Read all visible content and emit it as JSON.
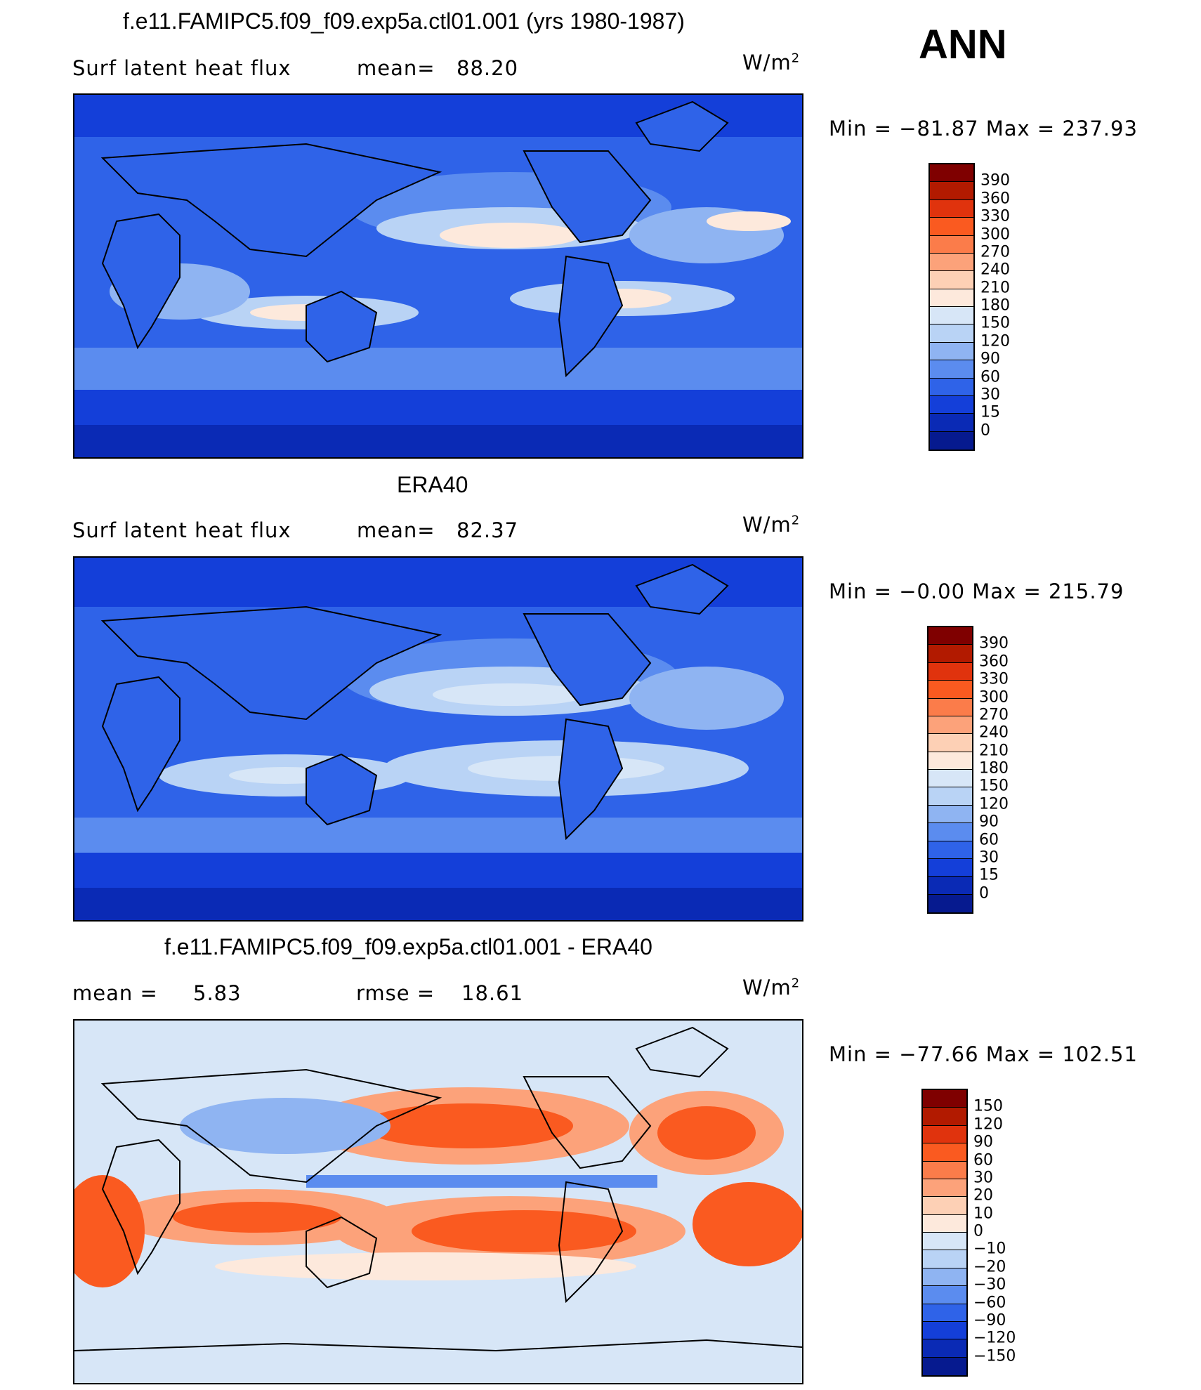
{
  "season": "ANN",
  "units_base": "W/m",
  "units_exp": "2",
  "panels": [
    {
      "title": "f.e11.FAMIPC5.f09_f09.exp5a.ctl01.001 (yrs 1980-1987)",
      "left_label": "Surf latent heat flux",
      "stat_label": "mean=",
      "stat_value": "88.20",
      "minmax": "Min = −81.87 Max = 237.93",
      "colorbar": {
        "colors": [
          "#7f0000",
          "#b21a00",
          "#e0330d",
          "#fa5a20",
          "#fb7c4a",
          "#fca27a",
          "#fdd0b5",
          "#fde9dc",
          "#d7e6f7",
          "#b9d3f5",
          "#8fb4f2",
          "#5b8cef",
          "#2f63e8",
          "#143fd9",
          "#0a2ab5",
          "#061a8f"
        ],
        "ticks": [
          "390",
          "360",
          "330",
          "300",
          "270",
          "240",
          "210",
          "180",
          "150",
          "120",
          "90",
          "60",
          "30",
          "15",
          "0"
        ]
      }
    },
    {
      "title": "ERA40",
      "left_label": "Surf latent heat flux",
      "stat_label": "mean=",
      "stat_value": "82.37",
      "minmax": "Min =  −0.00 Max = 215.79",
      "colorbar": {
        "colors": [
          "#7f0000",
          "#b21a00",
          "#e0330d",
          "#fa5a20",
          "#fb7c4a",
          "#fca27a",
          "#fdd0b5",
          "#fde9dc",
          "#d7e6f7",
          "#b9d3f5",
          "#8fb4f2",
          "#5b8cef",
          "#2f63e8",
          "#143fd9",
          "#0a2ab5",
          "#061a8f"
        ],
        "ticks": [
          "390",
          "360",
          "330",
          "300",
          "270",
          "240",
          "210",
          "180",
          "150",
          "120",
          "90",
          "60",
          "30",
          "15",
          "0"
        ]
      }
    },
    {
      "title": "f.e11.FAMIPC5.f09_f09.exp5a.ctl01.001 - ERA40",
      "left_label": "mean =",
      "left_value": "5.83",
      "stat_label": "rmse =",
      "stat_value": "18.61",
      "minmax": "Min = −77.66 Max = 102.51",
      "colorbar": {
        "colors": [
          "#7f0000",
          "#b21a00",
          "#e0330d",
          "#fa5a20",
          "#fb7c4a",
          "#fca27a",
          "#fdd0b5",
          "#fde9dc",
          "#d7e6f7",
          "#b9d3f5",
          "#8fb4f2",
          "#5b8cef",
          "#2f63e8",
          "#143fd9",
          "#0a2ab5",
          "#061a8f"
        ],
        "ticks": [
          "150",
          "120",
          "90",
          "60",
          "30",
          "20",
          "10",
          "0",
          "−10",
          "−20",
          "−30",
          "−60",
          "−90",
          "−120",
          "−150"
        ]
      }
    }
  ]
}
